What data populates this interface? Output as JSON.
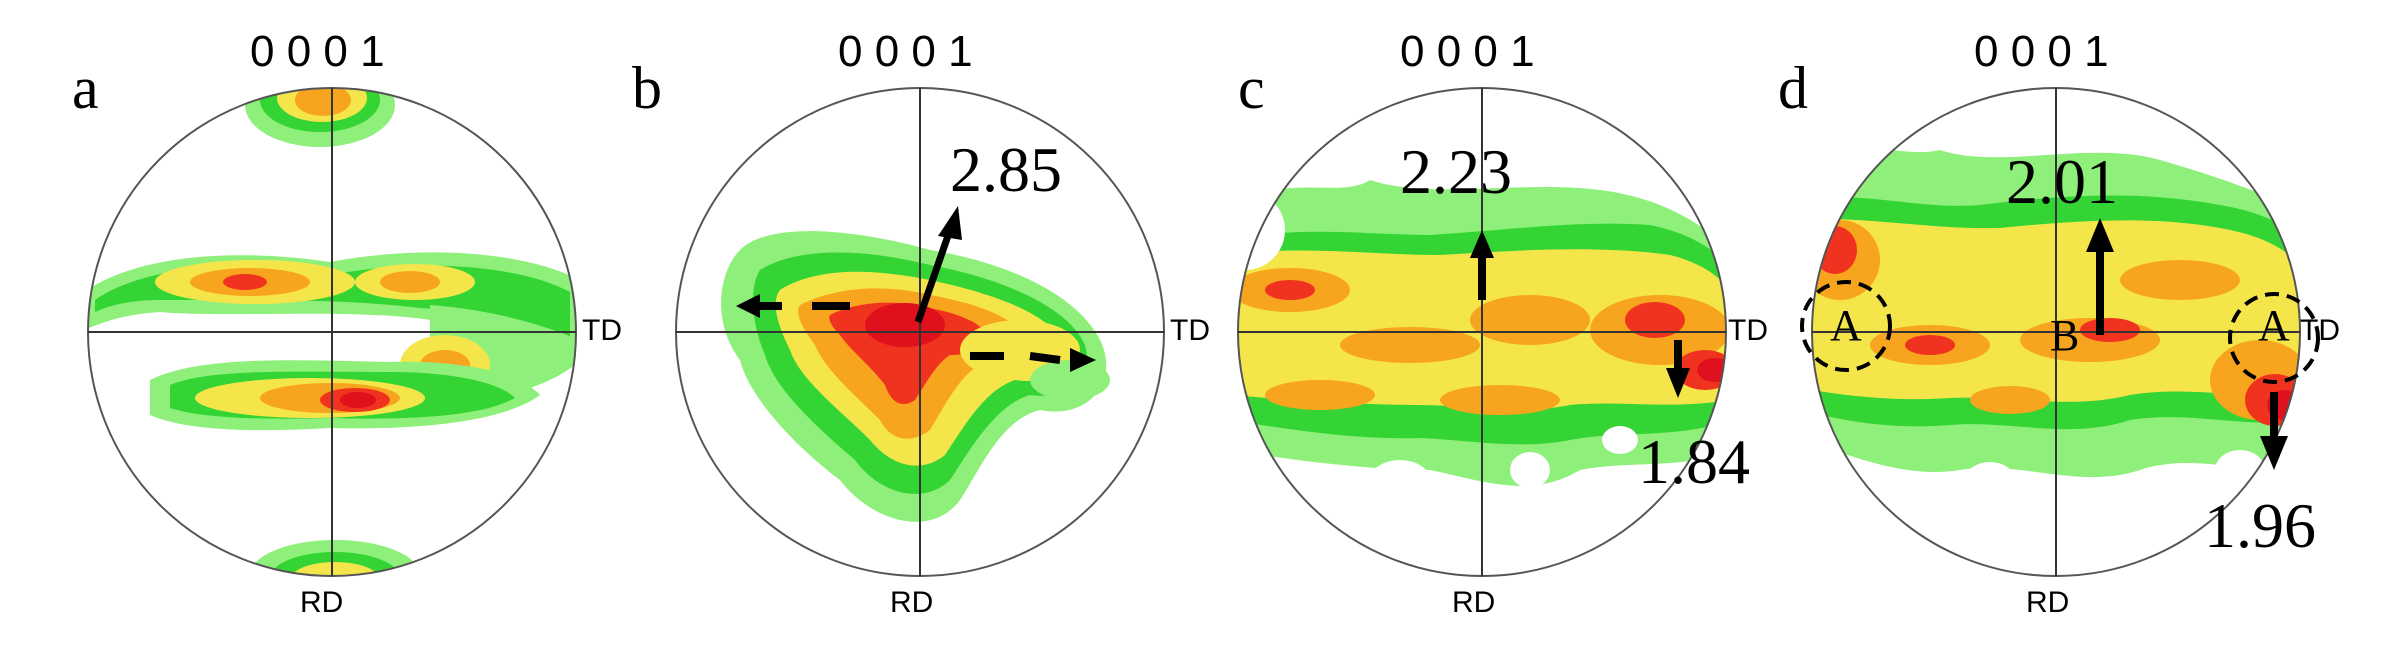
{
  "colors": {
    "light_green": "#8ef07a",
    "green": "#33d433",
    "yellow": "#f4e64a",
    "orange": "#f7a51e",
    "red": "#f0331e",
    "dark_red": "#e0101c"
  },
  "panels": [
    {
      "letter": "a",
      "pole": "0 0 0 1",
      "rd": "RD",
      "td": "TD"
    },
    {
      "letter": "b",
      "pole": "0 0 0 1",
      "rd": "RD",
      "td": "TD",
      "max_value": "2.85",
      "arrows": "outward-left-right"
    },
    {
      "letter": "c",
      "pole": "0 0 0 1",
      "rd": "RD",
      "td": "TD",
      "value_top": "2.23",
      "value_right": "1.84"
    },
    {
      "letter": "d",
      "pole": "0 0 0 1",
      "rd": "RD",
      "td": "TD",
      "value_top": "2.01",
      "value_right": "1.96",
      "marker_center": "B",
      "marker_left": "A",
      "marker_right": "A"
    }
  ]
}
